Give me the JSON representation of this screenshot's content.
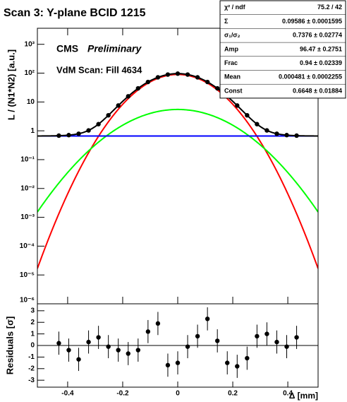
{
  "chart_data": [
    {
      "type": "scatter",
      "title": "Scan 3: Y-plane BCID 1215",
      "ylabel": "L / (N1*N2) [a.u.]",
      "annotations": {
        "cms": "CMS",
        "preliminary": "Preliminary",
        "fill": "VdM Scan: Fill 4634"
      },
      "ylog": true,
      "xlim": [
        -0.51,
        0.51
      ],
      "ylim": [
        1e-06,
        3600
      ],
      "yticks": [
        {
          "value": 1000,
          "label": "10³"
        },
        {
          "value": 100,
          "label": "10²"
        },
        10,
        1,
        {
          "value": 0.1,
          "label": "10⁻¹"
        },
        {
          "value": 0.01,
          "label": "10⁻²"
        },
        {
          "value": 0.001,
          "label": "10⁻³"
        },
        {
          "value": 0.0001,
          "label": "10⁻⁴"
        },
        {
          "value": 1e-05,
          "label": "10⁻⁵"
        },
        {
          "value": 1e-06,
          "label": "10⁻⁶"
        }
      ],
      "x": [
        -0.432,
        -0.396,
        -0.36,
        -0.324,
        -0.288,
        -0.252,
        -0.216,
        -0.18,
        -0.144,
        -0.108,
        -0.072,
        -0.036,
        0,
        0.036,
        0.072,
        0.108,
        0.144,
        0.18,
        0.216,
        0.252,
        0.288,
        0.324,
        0.36,
        0.396,
        0.432
      ],
      "series": [
        {
          "color": "#000000",
          "values": [
            0.68,
            0.71,
            0.79,
            1.03,
            1.7,
            3.45,
            7.52,
            15.7,
            29.7,
            49.4,
            71.4,
            89.2,
            96.2,
            89.2,
            71.4,
            49.4,
            29.7,
            15.7,
            7.52,
            3.45,
            1.7,
            1.03,
            0.79,
            0.71,
            0.68
          ]
        }
      ],
      "fits": [
        {
          "color": "#ff0000",
          "amp": 90,
          "sigma": 0.0916
        },
        {
          "color": "#00ff00",
          "amp": 5.5,
          "sigma": 0.126
        },
        {
          "color": "#0000ff",
          "const": 0.66
        }
      ],
      "fit_total_color": "#000000",
      "stats": [
        [
          "χ² / ndf",
          "75.2 / 42"
        ],
        [
          "Σ",
          "0.09586 ± 0.0001595"
        ],
        [
          "σ₁/σ₂",
          "0.7376 ± 0.02774"
        ],
        [
          "Amp",
          "96.47 ± 0.2751"
        ],
        [
          "Frac",
          "0.94 ± 0.02339"
        ],
        [
          "Mean",
          "0.000481 ± 0.0002255"
        ],
        [
          "Const",
          "0.6648 ± 0.01884"
        ]
      ]
    },
    {
      "type": "scatter",
      "ylabel": "Residuals [σ]",
      "xlabel": "Δ [mm]",
      "xlim": [
        -0.51,
        0.51
      ],
      "xticks": [
        -0.4,
        -0.2,
        0,
        0.2,
        0.4
      ],
      "ylim": [
        -3.6,
        3.6
      ],
      "yticks": [
        -3,
        -2,
        -1,
        0,
        1,
        2,
        3
      ],
      "x": [
        -0.432,
        -0.396,
        -0.36,
        -0.324,
        -0.288,
        -0.252,
        -0.216,
        -0.18,
        -0.144,
        -0.108,
        -0.072,
        -0.036,
        0,
        0.036,
        0.072,
        0.108,
        0.144,
        0.18,
        0.216,
        0.252,
        0.288,
        0.324,
        0.36,
        0.396,
        0.432
      ],
      "series": [
        {
          "color": "#000000",
          "values": [
            0.2,
            -0.4,
            -1.2,
            0.3,
            0.7,
            -0.1,
            -0.4,
            -0.7,
            -0.4,
            1.2,
            1.9,
            -1.7,
            -1.5,
            -0.1,
            0.8,
            2.3,
            0.4,
            -1.5,
            -1.8,
            -1.1,
            0.8,
            1.0,
            0.3,
            -0.1,
            0.7
          ],
          "errors": [
            1,
            1,
            1,
            1,
            1,
            1,
            1,
            1,
            1,
            1,
            1,
            1,
            1,
            1,
            1,
            1,
            1,
            1,
            1,
            1,
            1,
            1,
            1,
            1,
            1
          ]
        }
      ]
    }
  ]
}
